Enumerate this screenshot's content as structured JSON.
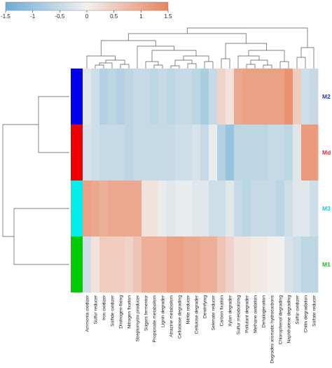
{
  "chart_data": {
    "type": "heatmap",
    "title": "",
    "colorbar": {
      "range": [
        -1.5,
        1.5
      ],
      "ticks": [
        "-1.5",
        "-1",
        "-0.5",
        "0",
        "0.5",
        "1",
        "1.5"
      ],
      "low_color": "#6aaed6",
      "mid_color": "#f2f0ee",
      "high_color": "#e9845e"
    },
    "columns": [
      "Ammonia oxidizer",
      "Sulfur reducer",
      "Iron oxidizer",
      "Sulfide oxidizer",
      "Dinitrogen-fixing",
      "Nitrogen fixation",
      "Streptomycin producer",
      "Sugars fermentor",
      "Propionate metabolism",
      "Lignin degrader",
      "Atrazine metabolism",
      "Cellobiose degrading",
      "Nitrite reducer",
      "Cellulose degrader",
      "Denitrifying",
      "Selenate reducer",
      "Carbon fixation",
      "Xylan degrader",
      "Sulfur metabolizing",
      "Pollutant degrader",
      "Methane oxidation",
      "Dehalogenation",
      "Degrades aromatic hydrocarbons",
      "Chlorophenol degrading",
      "Naphthalene degrading",
      "Sulfur oxidizer",
      "Chitin degradation",
      "Sulfate reducer"
    ],
    "rows": [
      {
        "label": "M2",
        "color": "#1f3fb4",
        "group_color": "#0000ee",
        "values": [
          -0.2,
          -0.4,
          -0.7,
          -0.6,
          -0.7,
          -0.6,
          -0.5,
          -0.5,
          -0.6,
          -0.5,
          -0.6,
          -0.5,
          -0.5,
          -0.6,
          -0.8,
          -0.5,
          0.4,
          0.2,
          1.0,
          1.1,
          1.1,
          1.1,
          1.1,
          1.1,
          1.3,
          0.5,
          -0.4,
          -0.5
        ]
      },
      {
        "label": "Md",
        "color": "#d93030",
        "group_color": "#ee0000",
        "values": [
          -0.3,
          -0.4,
          -0.5,
          -0.5,
          -0.5,
          -0.6,
          -0.5,
          -0.5,
          -0.5,
          -0.5,
          -0.5,
          -0.4,
          -0.4,
          -0.3,
          -0.5,
          -0.1,
          -0.7,
          -1.0,
          -0.6,
          -0.6,
          -0.6,
          -0.6,
          -0.5,
          -0.5,
          -0.6,
          -0.2,
          1.2,
          1.2
        ]
      },
      {
        "label": "M3",
        "color": "#25c3e0",
        "group_color": "#00eeee",
        "values": [
          1.1,
          1.0,
          0.9,
          1.0,
          1.0,
          1.0,
          1.0,
          0.2,
          0.2,
          -0.1,
          -0.2,
          -0.1,
          -0.1,
          -0.2,
          -0.2,
          -0.4,
          -0.4,
          -0.2,
          -0.5,
          -0.6,
          -0.5,
          -0.5,
          -0.5,
          -0.6,
          -0.4,
          -0.2,
          -0.2,
          -0.4
        ]
      },
      {
        "label": "M1",
        "color": "#22b822",
        "group_color": "#00cc00",
        "values": [
          -0.4,
          0.2,
          0.5,
          0.5,
          0.5,
          0.4,
          0.6,
          0.9,
          0.9,
          0.9,
          1.1,
          1.1,
          1.0,
          1.0,
          0.9,
          0.9,
          0.6,
          0.4,
          0.2,
          0.2,
          0.1,
          0.1,
          0.0,
          0.0,
          -0.3,
          -0.4,
          -0.6,
          -0.6
        ]
      }
    ]
  }
}
